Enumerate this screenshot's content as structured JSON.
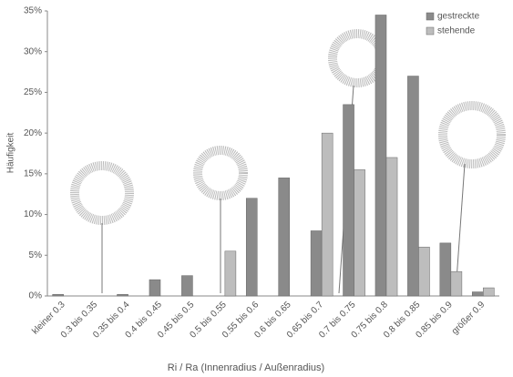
{
  "chart_data": {
    "type": "bar",
    "y_label": "Häufigkeit",
    "x_label": "Ri / Ra (Innenradius / Außenradius)",
    "categories": [
      "kleiner 0.3",
      "0.3 bis 0.35",
      "0.35 bis 0.4",
      "0.4 bis 0.45",
      "0.45 bis 0.5",
      "0.5 bis 0.55",
      "0.55 bis 0.6",
      "0.6 bis 0.65",
      "0.65 bis 0.7",
      "0.7 bis 0.75",
      "0.75 bis 0.8",
      "0.8 bis 0.85",
      "0.85 bis 0.9",
      "größer 0.9"
    ],
    "series": [
      {
        "name": "gestreckte",
        "color": "#8a8a8a",
        "values": [
          0.2,
          0,
          0.2,
          2,
          2.5,
          0,
          12,
          14.5,
          8,
          23.5,
          34.5,
          27,
          6.5,
          0.5
        ]
      },
      {
        "name": "stehende",
        "color": "#bdbdbd",
        "values": [
          0,
          0,
          0,
          0,
          0,
          5.5,
          0,
          0,
          20,
          15.5,
          17,
          6,
          3,
          1
        ]
      }
    ],
    "ylim": [
      0,
      35
    ],
    "yticks": [
      {
        "value": 0,
        "label": "0%"
      },
      {
        "value": 5,
        "label": "5%"
      },
      {
        "value": 10,
        "label": "10%"
      },
      {
        "value": 15,
        "label": "15%"
      },
      {
        "value": 20,
        "label": "20%"
      },
      {
        "value": 25,
        "label": "25%"
      },
      {
        "value": 30,
        "label": "30%"
      },
      {
        "value": 35,
        "label": "35%"
      }
    ],
    "legend": "top-right"
  }
}
